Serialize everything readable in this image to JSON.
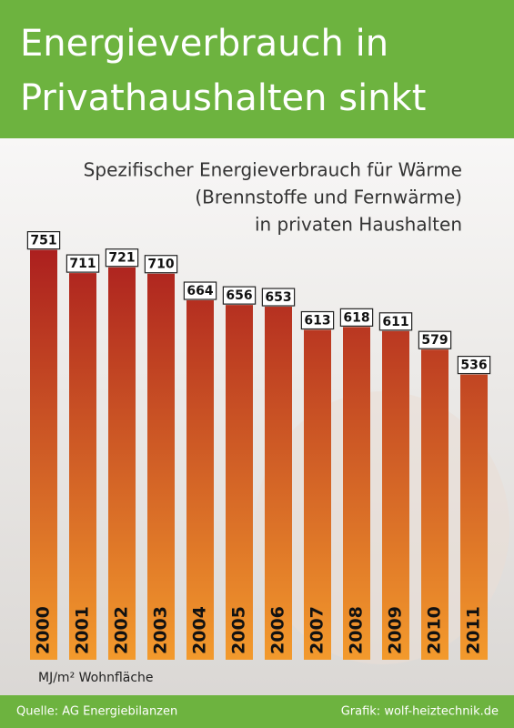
{
  "chart_data": {
    "type": "bar",
    "title": [
      "Energieverbrauch in",
      "Privathaushalten sinkt"
    ],
    "subtitle": [
      "Spezifischer Energieverbrauch für Wärme",
      "(Brennstoffe und Fernwärme)",
      "in privaten Haushalten"
    ],
    "categories": [
      "2000",
      "2001",
      "2002",
      "2003",
      "2004",
      "2005",
      "2006",
      "2007",
      "2008",
      "2009",
      "2010",
      "2011"
    ],
    "values": [
      751,
      711,
      721,
      710,
      664,
      656,
      653,
      613,
      618,
      611,
      579,
      536
    ],
    "gradient": [
      "#a8191e",
      "#f39a2c"
    ],
    "unit_label": "MJ/m² Wohnfläche",
    "source": "Quelle: AG Energiebilanzen",
    "credit": "Grafik: wolf-heiztechnik.de"
  }
}
